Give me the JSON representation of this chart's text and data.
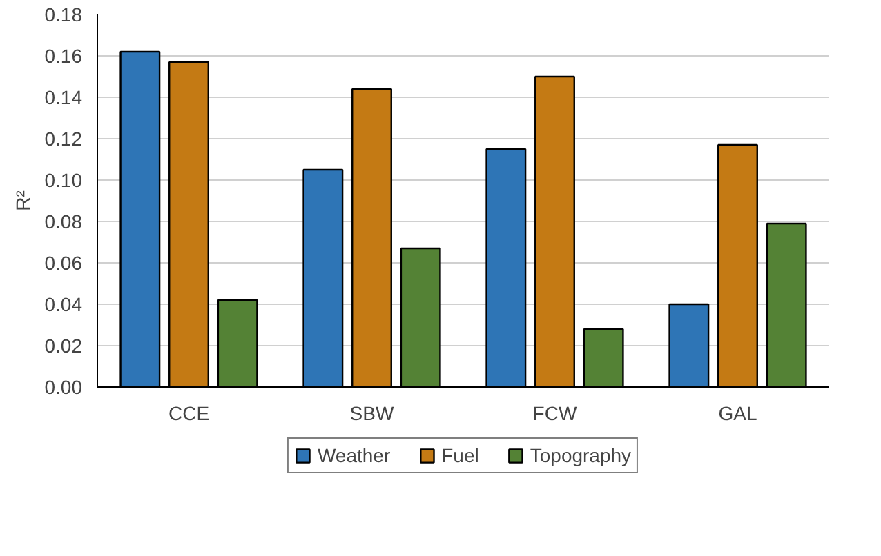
{
  "chart_data": {
    "type": "bar",
    "ylabel": "R²",
    "categories": [
      "CCE",
      "SBW",
      "FCW",
      "GAL"
    ],
    "series": [
      {
        "name": "Weather",
        "color": "#2e75b6",
        "values": [
          0.162,
          0.105,
          0.115,
          0.04
        ]
      },
      {
        "name": "Fuel",
        "color": "#c47a14",
        "values": [
          0.157,
          0.144,
          0.15,
          0.117
        ]
      },
      {
        "name": "Topography",
        "color": "#548235",
        "values": [
          0.042,
          0.067,
          0.028,
          0.079
        ]
      }
    ],
    "ylim": [
      0,
      0.18
    ],
    "yticks": [
      {
        "value": 0,
        "label": "0.00"
      },
      {
        "value": 0.02,
        "label": "0.02"
      },
      {
        "value": 0.04,
        "label": "0.04"
      },
      {
        "value": 0.06,
        "label": "0.06"
      },
      {
        "value": 0.08,
        "label": "0.08"
      },
      {
        "value": 0.1,
        "label": "0.10"
      },
      {
        "value": 0.12,
        "label": "0.12"
      },
      {
        "value": 0.14,
        "label": "0.14"
      },
      {
        "value": 0.16,
        "label": "0.16"
      },
      {
        "value": 0.18,
        "label": "0.18"
      }
    ],
    "grid": "y",
    "legend": "bottom"
  }
}
